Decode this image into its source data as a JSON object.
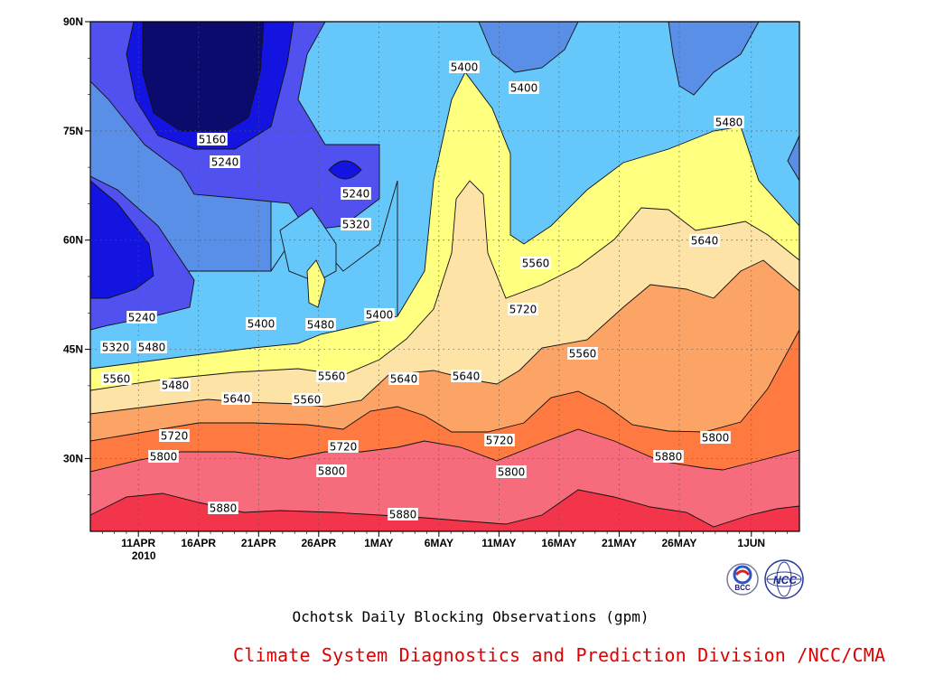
{
  "chart_data": {
    "type": "heatmap",
    "variant": "filled-contour (time–latitude Hovmöller)",
    "title": "Ochotsk Daily Blocking Observations (gpm)",
    "credit": "Climate System Diagnostics and Prediction Division /NCC/CMA",
    "x_ticks": [
      "11APR",
      "16APR",
      "21APR",
      "26APR",
      "1MAY",
      "6MAY",
      "11MAY",
      "16MAY",
      "21MAY",
      "26MAY",
      "1JUN"
    ],
    "x_year_label": "2010",
    "y_ticks": [
      "90N",
      "75N",
      "60N",
      "45N",
      "30N"
    ],
    "xlim": [
      "2010-04-07",
      "2010-06-05"
    ],
    "ylim": [
      20,
      90
    ],
    "grid": true,
    "contour_levels": [
      5080,
      5160,
      5240,
      5320,
      5400,
      5480,
      5560,
      5640,
      5720,
      5800,
      5880
    ],
    "fill_colors": [
      "#0b0b6e",
      "#1414e0",
      "#5151f0",
      "#5a8fe8",
      "#66c8fa",
      "#ffff80",
      "#fde3a6",
      "#fca466",
      "#ff7a40",
      "#f76c7c",
      "#f2354a"
    ],
    "contour_labels": [
      "5160",
      "5240",
      "5240",
      "5320",
      "5240",
      "5400",
      "5400",
      "5480",
      "5400",
      "5400",
      "5320",
      "5480",
      "5480",
      "5560",
      "5480",
      "5560",
      "5560",
      "5560",
      "5640",
      "5640",
      "5640",
      "5640",
      "5560",
      "5720",
      "5720",
      "5720",
      "5720",
      "5800",
      "5800",
      "5800",
      "5800",
      "5880",
      "5880",
      "5880"
    ]
  },
  "logos": [
    {
      "name": "BCC"
    },
    {
      "name": "NCC"
    }
  ]
}
